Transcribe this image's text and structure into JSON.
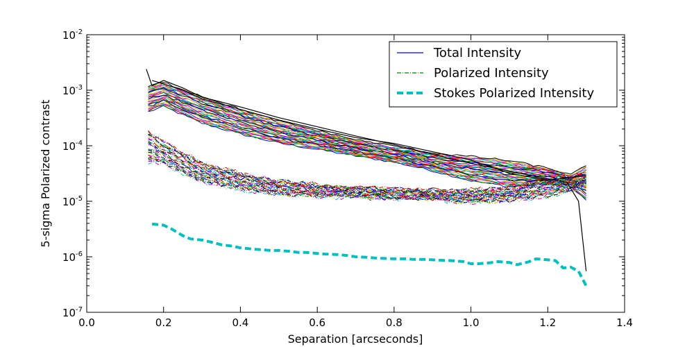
{
  "chart_data": {
    "type": "line",
    "title": "",
    "xlabel": "Separation [arcseconds]",
    "ylabel": "5-sigma Polarized contrast",
    "xlim": [
      0.0,
      1.4
    ],
    "ylim": [
      1e-07,
      0.01
    ],
    "yscale": "log",
    "grid": false,
    "legend_position": "top-right",
    "x_ticks": [
      "0.0",
      "0.2",
      "0.4",
      "0.6",
      "0.8",
      "1.0",
      "1.2",
      "1.4"
    ],
    "y_ticks": [
      {
        "base": "10",
        "exp": "-7"
      },
      {
        "base": "10",
        "exp": "-6"
      },
      {
        "base": "10",
        "exp": "-5"
      },
      {
        "base": "10",
        "exp": "-4"
      },
      {
        "base": "10",
        "exp": "-3"
      },
      {
        "base": "10",
        "exp": "-2"
      }
    ],
    "legend": [
      {
        "label": "Total Intensity",
        "color": "#0000ff",
        "style": "solid"
      },
      {
        "label": "Polarized Intensity",
        "color": "#008000",
        "style": "dashdot"
      },
      {
        "label": "Stokes Polarized Intensity",
        "color": "#00bfbf",
        "style": "dashed"
      }
    ],
    "color_cycle": [
      "#0000ff",
      "#008000",
      "#ff0000",
      "#00bfbf",
      "#bf00bf",
      "#bfbf00",
      "#000000"
    ],
    "series_groups": [
      {
        "name": "Total Intensity",
        "style": "solid",
        "count": 28,
        "x": [
          0.16,
          0.2,
          0.3,
          0.4,
          0.5,
          0.6,
          0.7,
          0.8,
          0.9,
          1.0,
          1.1,
          1.2,
          1.26,
          1.3
        ],
        "y_low": [
          0.0004,
          0.0005,
          0.00025,
          0.00016,
          0.00011,
          8.5e-05,
          6.5e-05,
          5e-05,
          3.5e-05,
          2.3e-05,
          1.8e-05,
          2e-05,
          1.8e-05,
          1e-05
        ],
        "y_high": [
          0.0012,
          0.0014,
          0.0008,
          0.00046,
          0.00028,
          0.00019,
          0.00013,
          0.0001,
          7.5e-05,
          6.5e-05,
          5.5e-05,
          4e-05,
          3e-05,
          4.5e-05
        ]
      },
      {
        "name": "Polarized Intensity",
        "style": "dashdot",
        "count": 28,
        "x": [
          0.16,
          0.2,
          0.3,
          0.4,
          0.5,
          0.6,
          0.7,
          0.8,
          0.9,
          1.0,
          1.1,
          1.2,
          1.26,
          1.3
        ],
        "y_low": [
          5e-05,
          4.5e-05,
          2.2e-05,
          1.6e-05,
          1.3e-05,
          1.2e-05,
          1.15e-05,
          1.1e-05,
          1.05e-05,
          9.5e-06,
          1e-05,
          1.2e-05,
          1.5e-05,
          2e-05
        ],
        "y_high": [
          0.00018,
          0.00012,
          5e-05,
          3.2e-05,
          2.4e-05,
          2e-05,
          1.8e-05,
          1.7e-05,
          1.6e-05,
          1.6e-05,
          1.8e-05,
          2.5e-05,
          2.8e-05,
          3e-05
        ]
      }
    ],
    "stokes_series": {
      "name": "Stokes Polarized Intensity",
      "color": "#00bfbf",
      "style": "dashed",
      "x": [
        0.17,
        0.2,
        0.22,
        0.25,
        0.27,
        0.3,
        0.33,
        0.35,
        0.38,
        0.4,
        0.43,
        0.45,
        0.48,
        0.5,
        0.53,
        0.55,
        0.57,
        0.6,
        0.62,
        0.65,
        0.68,
        0.7,
        0.73,
        0.75,
        0.78,
        0.8,
        0.83,
        0.85,
        0.88,
        0.9,
        0.93,
        0.95,
        0.98,
        1.0,
        1.02,
        1.05,
        1.07,
        1.1,
        1.12,
        1.15,
        1.17,
        1.2,
        1.22,
        1.24,
        1.26,
        1.28,
        1.3
      ],
      "y": [
        3.9e-06,
        3.7e-06,
        3.2e-06,
        2.4e-06,
        2.1e-06,
        2e-06,
        1.8e-06,
        1.65e-06,
        1.55e-06,
        1.45e-06,
        1.38e-06,
        1.35e-06,
        1.3e-06,
        1.3e-06,
        1.25e-06,
        1.2e-06,
        1.2e-06,
        1.15e-06,
        1.12e-06,
        1.1e-06,
        1.05e-06,
        1e-06,
        9.8e-07,
        9.5e-07,
        9.3e-07,
        9.2e-07,
        9.2e-07,
        9e-07,
        9e-07,
        8.8e-07,
        8.6e-07,
        8.5e-07,
        8.2e-07,
        7.5e-07,
        7.5e-07,
        7.8e-07,
        8.2e-07,
        7.9e-07,
        7.2e-07,
        8.1e-07,
        9.2e-07,
        8.8e-07,
        8.5e-07,
        6.3e-07,
        6.5e-07,
        5.5e-07,
        3e-07
      ]
    },
    "black_curves": [
      {
        "x": [
          0.155,
          0.17,
          0.2,
          0.25,
          0.3,
          0.4,
          0.5,
          0.6,
          0.7,
          0.8,
          0.9,
          1.0,
          1.1,
          1.2,
          1.25,
          1.28,
          1.3
        ],
        "y": [
          0.0024,
          0.0012,
          0.0015,
          0.0011,
          0.00075,
          0.0005,
          0.00032,
          0.00022,
          0.00015,
          0.000105,
          7e-05,
          4.8e-05,
          3.5e-05,
          2.5e-05,
          2.2e-05,
          1e-05,
          5.5e-07
        ]
      },
      {
        "x": [
          0.17,
          0.2,
          0.25,
          0.3,
          0.4,
          0.5,
          0.6,
          0.7,
          0.8,
          0.9,
          1.0,
          1.1,
          1.2,
          1.3
        ],
        "y": [
          0.0015,
          0.0013,
          0.001,
          0.0007,
          0.00045,
          0.00029,
          0.0002,
          0.00014,
          0.00011,
          7.8e-05,
          5.5e-05,
          3.2e-05,
          2.4e-05,
          2.9e-05
        ]
      }
    ]
  }
}
